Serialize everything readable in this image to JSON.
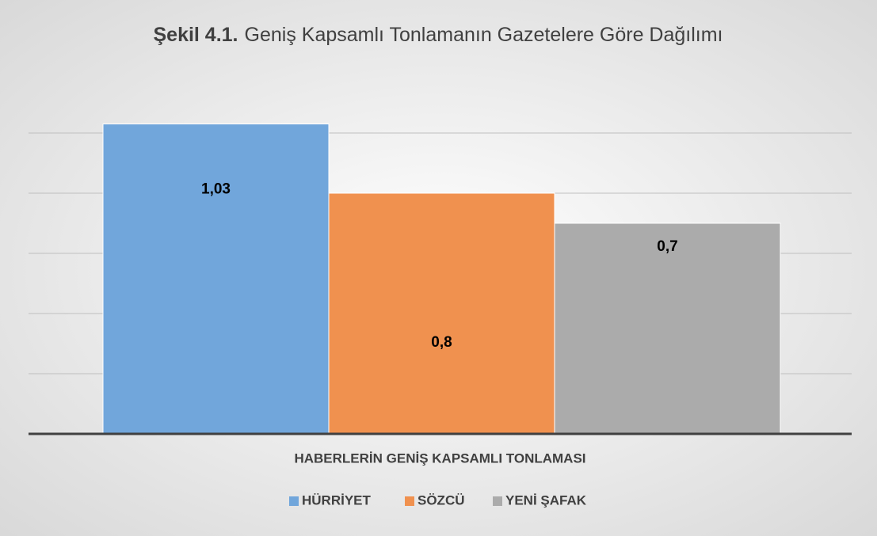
{
  "chart_data": {
    "type": "bar",
    "figure_label": "Şekil 4.1.",
    "title": "Geniş Kapsamlı Tonlamanın Gazetelere Göre Dağılımı",
    "categories": [
      "HABERLERİN GENİŞ KAPSAMLI TONLAMASI"
    ],
    "series": [
      {
        "name": "HÜRRİYET",
        "color": "#71a6db",
        "values": [
          1.03
        ],
        "value_labels": [
          "1,03"
        ]
      },
      {
        "name": "SÖZCÜ",
        "color": "#f0914f",
        "values": [
          0.8
        ],
        "value_labels": [
          "0,8"
        ]
      },
      {
        "name": "YENİ ŞAFAK",
        "color": "#ababab",
        "values": [
          0.7
        ],
        "value_labels": [
          "0,7"
        ]
      }
    ],
    "ylim": [
      0,
      1.2
    ],
    "yticks": [
      0,
      0.2,
      0.4,
      0.6,
      0.8,
      1.0
    ],
    "grid": true,
    "legend": "bottom"
  }
}
